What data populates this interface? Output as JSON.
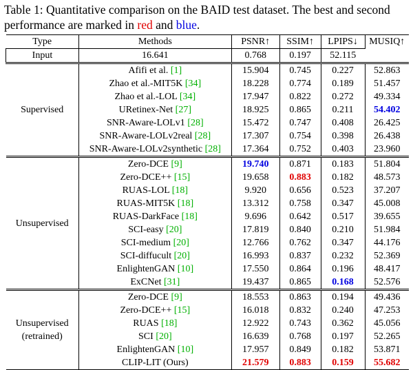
{
  "caption": {
    "part1": "Table 1: Quantitative comparison on the BAID test dataset. The best and second performance are marked in ",
    "red_word": "red",
    "and_word": " and ",
    "blue_word": "blue",
    "period": "."
  },
  "header": {
    "type": "Type",
    "methods": "Methods",
    "psnr": "PSNR↑",
    "ssim": "SSIM↑",
    "lpips": "LPIPS↓",
    "musiq": "MUSIQ↑"
  },
  "input_row": {
    "method": "Input",
    "psnr": "16.641",
    "ssim": "0.768",
    "lpips": "0.197",
    "musiq": "52.115"
  },
  "groups": [
    {
      "type_lines": [
        "Supervised"
      ],
      "rows": [
        {
          "method": "Afifi et al. ",
          "cite": "[1]",
          "psnr": "15.904",
          "ssim": "0.745",
          "lpips": "0.227",
          "musiq": "52.863"
        },
        {
          "method": "Zhao et al.-MIT5K ",
          "cite": "[34]",
          "psnr": "18.228",
          "ssim": "0.774",
          "lpips": "0.189",
          "musiq": "51.457"
        },
        {
          "method": "Zhao et al.-LOL ",
          "cite": "[34]",
          "psnr": "17.947",
          "ssim": "0.822",
          "lpips": "0.272",
          "musiq": "49.334"
        },
        {
          "method": "URetinex-Net ",
          "cite": "[27]",
          "psnr": "18.925",
          "ssim": "0.865",
          "lpips": "0.211",
          "musiq": "54.402",
          "musiq_style": "blue"
        },
        {
          "method": "SNR-Aware-LOLv1 ",
          "cite": "[28]",
          "psnr": "15.472",
          "ssim": "0.747",
          "lpips": "0.408",
          "musiq": "26.425"
        },
        {
          "method": "SNR-Aware-LOLv2real ",
          "cite": "[28]",
          "psnr": "17.307",
          "ssim": "0.754",
          "lpips": "0.398",
          "musiq": "26.438"
        },
        {
          "method": "SNR-Aware-LOLv2synthetic ",
          "cite": "[28]",
          "psnr": "17.364",
          "ssim": "0.752",
          "lpips": "0.403",
          "musiq": "23.960"
        }
      ]
    },
    {
      "type_lines": [
        "Unsupervised"
      ],
      "rows": [
        {
          "method": "Zero-DCE ",
          "cite": "[9]",
          "psnr": "19.740",
          "psnr_style": "blue",
          "ssim": "0.871",
          "lpips": "0.183",
          "musiq": "51.804"
        },
        {
          "method": "Zero-DCE++ ",
          "cite": "[15]",
          "psnr": "19.658",
          "ssim": "0.883",
          "ssim_style": "red",
          "lpips": "0.182",
          "musiq": "48.573"
        },
        {
          "method": "RUAS-LOL ",
          "cite": "[18]",
          "psnr": "9.920",
          "ssim": "0.656",
          "lpips": "0.523",
          "musiq": "37.207"
        },
        {
          "method": "RUAS-MIT5K ",
          "cite": "[18]",
          "psnr": "13.312",
          "ssim": "0.758",
          "lpips": "0.347",
          "musiq": "45.008"
        },
        {
          "method": "RUAS-DarkFace ",
          "cite": "[18]",
          "psnr": "9.696",
          "ssim": "0.642",
          "lpips": "0.517",
          "musiq": "39.655"
        },
        {
          "method": "SCI-easy ",
          "cite": "[20]",
          "psnr": "17.819",
          "ssim": "0.840",
          "lpips": "0.210",
          "musiq": "51.984"
        },
        {
          "method": "SCI-medium ",
          "cite": "[20]",
          "psnr": "12.766",
          "ssim": "0.762",
          "lpips": "0.347",
          "musiq": "44.176"
        },
        {
          "method": "SCI-diffucult ",
          "cite": "[20]",
          "psnr": "16.993",
          "ssim": "0.837",
          "lpips": "0.232",
          "musiq": "52.369"
        },
        {
          "method": "EnlightenGAN ",
          "cite": "[10]",
          "psnr": "17.550",
          "ssim": "0.864",
          "lpips": "0.196",
          "musiq": "48.417"
        },
        {
          "method": "ExCNet ",
          "cite": "[31]",
          "psnr": "19.437",
          "ssim": "0.865",
          "lpips": "0.168",
          "lpips_style": "blue",
          "musiq": "52.576"
        }
      ]
    },
    {
      "type_lines": [
        "Unsupervised",
        "(retrained)"
      ],
      "rows": [
        {
          "method": "Zero-DCE ",
          "cite": "[9]",
          "psnr": "18.553",
          "ssim": "0.863",
          "lpips": "0.194",
          "musiq": "49.436"
        },
        {
          "method": "Zero-DCE++ ",
          "cite": "[15]",
          "psnr": "16.018",
          "ssim": "0.832",
          "lpips": "0.240",
          "musiq": "47.253"
        },
        {
          "method": "RUAS ",
          "cite": "[18]",
          "psnr": "12.922",
          "ssim": "0.743",
          "lpips": "0.362",
          "musiq": "45.056"
        },
        {
          "method": "SCI ",
          "cite": "[20]",
          "psnr": "16.639",
          "ssim": "0.768",
          "lpips": "0.197",
          "musiq": "52.265"
        },
        {
          "method": "EnlightenGAN ",
          "cite": "[10]",
          "psnr": "17.957",
          "ssim": "0.849",
          "lpips": "0.182",
          "musiq": "53.871"
        },
        {
          "method": "CLIP-LIT (Ours)",
          "cite": "",
          "psnr": "21.579",
          "psnr_style": "red",
          "ssim": "0.883",
          "ssim_style": "red",
          "lpips": "0.159",
          "lpips_style": "red",
          "musiq": "55.682",
          "musiq_style": "red"
        }
      ]
    }
  ],
  "colors": {
    "red": "#e00000",
    "blue": "#0000e0",
    "cite": "#00b000"
  }
}
